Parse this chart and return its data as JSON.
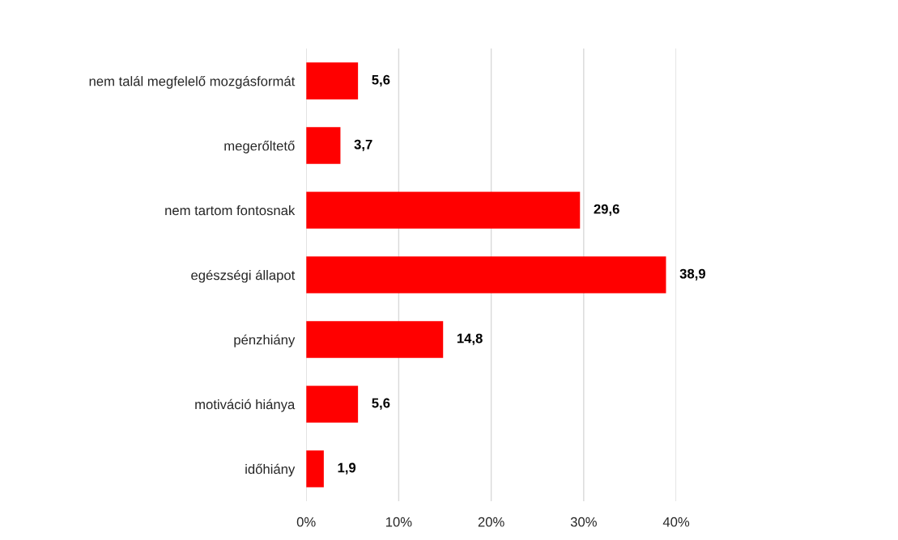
{
  "chart_data": {
    "type": "bar",
    "orientation": "horizontal",
    "categories": [
      "nem talál megfelelő mozgásformát",
      "megerőltető",
      "nem tartom fontosnak",
      "egészségi állapot",
      "pénzhiány",
      "motiváció hiánya",
      "időhiány"
    ],
    "values": [
      5.6,
      3.7,
      29.6,
      38.9,
      14.8,
      5.6,
      1.9
    ],
    "value_labels": [
      "5,6",
      "3,7",
      "29,6",
      "38,9",
      "14,8",
      "5,6",
      "1,9"
    ],
    "color": "#ff0000",
    "xlim": [
      0,
      40
    ],
    "xticks": [
      {
        "value": 0,
        "label": "0%"
      },
      {
        "value": 10,
        "label": "10%"
      },
      {
        "value": 20,
        "label": "20%"
      },
      {
        "value": 30,
        "label": "30%"
      },
      {
        "value": 40,
        "label": "40%"
      }
    ],
    "grid": "x"
  }
}
